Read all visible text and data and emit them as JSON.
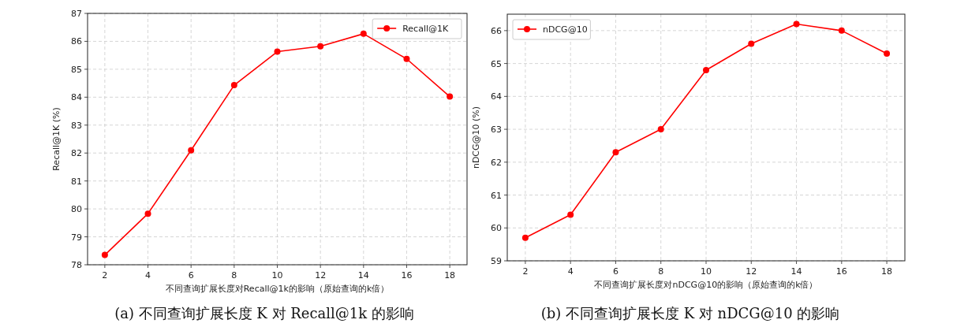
{
  "chart_data": [
    {
      "type": "line",
      "xlabel": "不同查询扩展长度对Recall@1k的影响（原始查询的k倍）",
      "ylabel": "Recall@1K (%)",
      "x": [
        2,
        4,
        6,
        8,
        10,
        12,
        14,
        16,
        18
      ],
      "series": [
        {
          "name": "Recall@1K",
          "color": "#ff0000",
          "values": [
            78.35,
            79.83,
            82.1,
            84.43,
            85.63,
            85.82,
            86.27,
            85.37,
            84.02
          ]
        }
      ],
      "xlim": [
        1.2,
        18.8
      ],
      "ylim": [
        78,
        87
      ],
      "xticks": [
        2,
        4,
        6,
        8,
        10,
        12,
        14,
        16,
        18
      ],
      "yticks": [
        78,
        79,
        80,
        81,
        82,
        83,
        84,
        85,
        86,
        87
      ],
      "grid": true,
      "legend": "top right",
      "marker": "circle",
      "line_style": "solid",
      "annotations": [
        "(a) 不同查询扩展长度 K 对 Recall@1k 的影响"
      ]
    },
    {
      "type": "line",
      "xlabel": "不同查询扩展长度对nDCG@10的影响（原始查询的k倍）",
      "ylabel": "nDCG@10 (%)",
      "x": [
        2,
        4,
        6,
        8,
        10,
        12,
        14,
        16,
        18
      ],
      "series": [
        {
          "name": "nDCG@10",
          "color": "#ff0000",
          "values": [
            59.7,
            60.4,
            62.3,
            63.0,
            64.8,
            65.6,
            66.2,
            66.0,
            65.3
          ]
        }
      ],
      "xlim": [
        1.2,
        18.8
      ],
      "ylim": [
        59,
        66.5
      ],
      "xticks": [
        2,
        4,
        6,
        8,
        10,
        12,
        14,
        16,
        18
      ],
      "yticks": [
        59,
        60,
        61,
        62,
        63,
        64,
        65,
        66
      ],
      "grid": true,
      "legend": "top left",
      "marker": "circle",
      "line_style": "solid",
      "annotations": [
        "(b) 不同查询扩展长度 K 对 nDCG@10 的影响"
      ]
    }
  ]
}
